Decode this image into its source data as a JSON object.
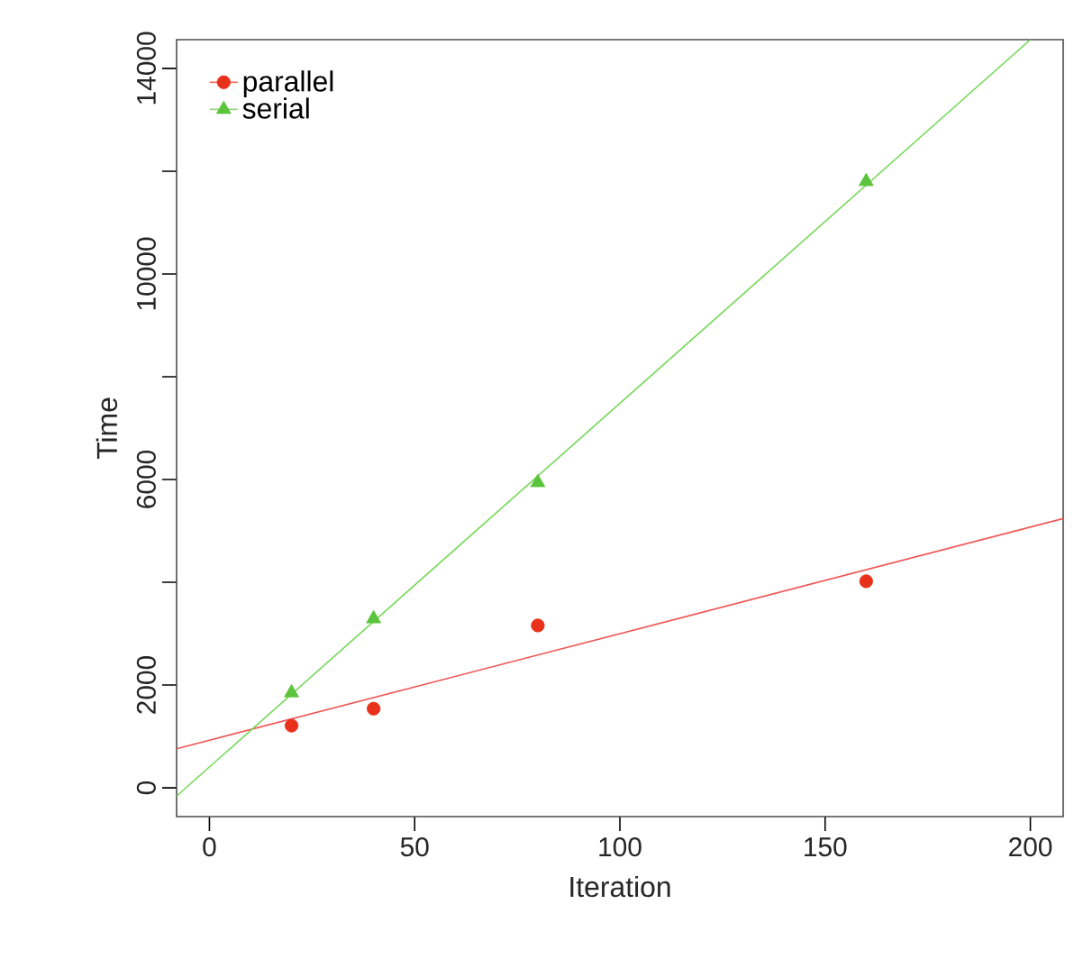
{
  "chart_data": {
    "type": "scatter",
    "xlabel": "Iteration",
    "ylabel": "Time",
    "xlim": [
      -8,
      208
    ],
    "ylim": [
      -560,
      14560
    ],
    "xticks": [
      0,
      50,
      100,
      150,
      200
    ],
    "yticks": [
      0,
      2000,
      {
        "value": 4000,
        "label": null
      },
      6000,
      {
        "value": 8000,
        "label": null
      },
      10000,
      {
        "value": 12000,
        "label": null
      },
      14000
    ],
    "legend": "top left",
    "grid": false,
    "series": [
      {
        "name": "parallel",
        "color": "#e8311a",
        "marker": "circle",
        "x": [
          20,
          40,
          80,
          160
        ],
        "values": [
          1210,
          1540,
          3160,
          4020
        ]
      },
      {
        "name": "serial",
        "color": "#5cc43c",
        "marker": "triangle",
        "x": [
          20,
          40,
          80,
          160
        ],
        "values": [
          1850,
          3290,
          5940,
          11800
        ]
      },
      {
        "type": "line",
        "color": "#f05555",
        "marker": "none",
        "x": [
          -8,
          208
        ],
        "values": [
          760,
          5240
        ]
      },
      {
        "type": "line",
        "color": "#77d85a",
        "marker": "none",
        "x": [
          -8,
          200
        ],
        "values": [
          -160,
          14560
        ]
      }
    ]
  }
}
